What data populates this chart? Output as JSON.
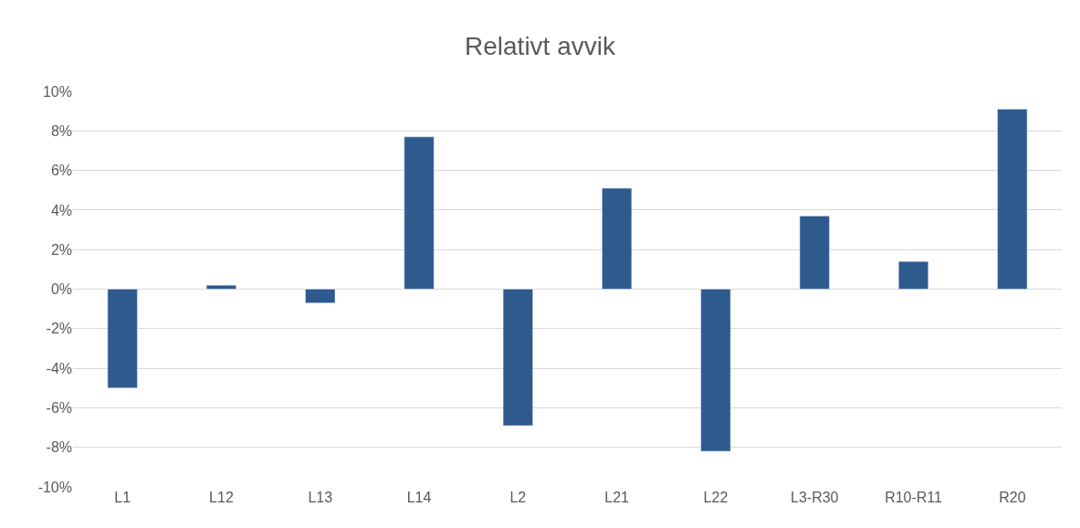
{
  "chart_data": {
    "type": "bar",
    "title": "Relativt avvik",
    "categories": [
      "L1",
      "L12",
      "L13",
      "L14",
      "L2",
      "L21",
      "L22",
      "L3-R30",
      "R10-R11",
      "R20"
    ],
    "values": [
      -5.0,
      0.2,
      -0.7,
      7.7,
      -6.9,
      5.1,
      -8.2,
      3.7,
      1.4,
      9.1
    ],
    "color": "#2e5a8e",
    "ylim": [
      -10,
      10
    ],
    "yticks": [
      {
        "value": -10,
        "label": "-10%"
      },
      {
        "value": -8,
        "label": "-8%"
      },
      {
        "value": -6,
        "label": "-6%"
      },
      {
        "value": -4,
        "label": "-4%"
      },
      {
        "value": -2,
        "label": "-2%"
      },
      {
        "value": 0,
        "label": "0%"
      },
      {
        "value": 2,
        "label": "2%"
      },
      {
        "value": 4,
        "label": "4%"
      },
      {
        "value": 6,
        "label": "6%"
      },
      {
        "value": 8,
        "label": "8%"
      },
      {
        "value": 10,
        "label": "10%"
      }
    ],
    "grid": "y"
  }
}
